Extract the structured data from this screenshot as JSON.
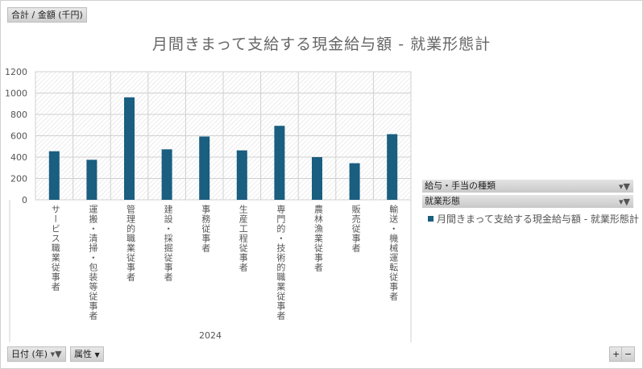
{
  "header": {
    "measure_button": "合計 / 金額 (千円)"
  },
  "filters": {
    "field1": "給与・手当の種類",
    "field2": "就業形態"
  },
  "bottom": {
    "date_button": "日付 (年)",
    "attr_button": "属性",
    "plus": "+",
    "minus": "−"
  },
  "colors": {
    "bar": "#1a5e80"
  },
  "chart_data": {
    "type": "bar",
    "title": "月間きまって支給する現金給与額 - 就業形態計",
    "categories": [
      "サービス職業従事者",
      "運搬・清掃・包装等従事者",
      "管理的職業従事者",
      "建設・採掘従事者",
      "事務従事者",
      "生産工程従事者",
      "専門的・技術的職業従事者",
      "農林漁業従事者",
      "販売従事者",
      "輸送・機械運転従事者"
    ],
    "group_label": "2024",
    "series": [
      {
        "name": "月間きまって支給する現金給与額 - 就業形態計",
        "values": [
          455,
          375,
          960,
          473,
          593,
          463,
          693,
          400,
          343,
          615
        ]
      }
    ],
    "ylim": [
      0,
      1200
    ],
    "yticks": [
      "0",
      "200",
      "400",
      "600",
      "800",
      "1000",
      "1200"
    ],
    "grid": true,
    "legend": "right"
  }
}
